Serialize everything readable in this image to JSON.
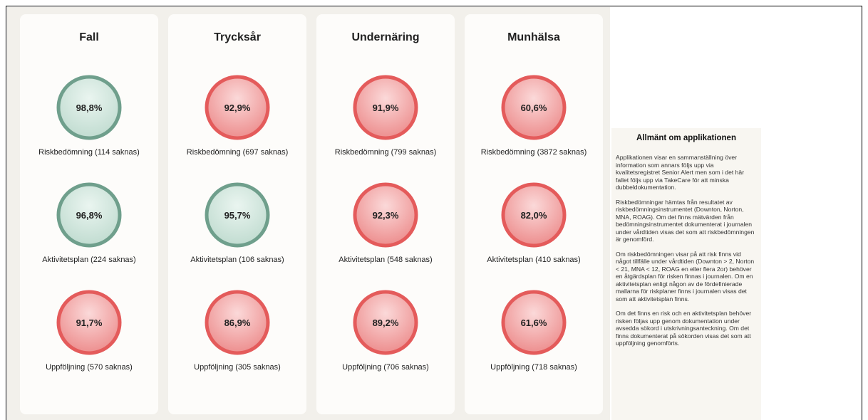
{
  "columns": [
    {
      "title": "Fall",
      "metrics": [
        {
          "value": "98,8%",
          "label": "Riskbedömning (114 saknas)",
          "color": "#6f9f8c"
        },
        {
          "value": "96,8%",
          "label": "Aktivitetsplan (224 saknas)",
          "color": "#6f9f8c"
        },
        {
          "value": "91,7%",
          "label": "Uppföljning (570 saknas)",
          "color": "#e45b5b"
        }
      ]
    },
    {
      "title": "Trycksår",
      "metrics": [
        {
          "value": "92,9%",
          "label": "Riskbedömning (697 saknas)",
          "color": "#e45b5b"
        },
        {
          "value": "95,7%",
          "label": "Aktivitetsplan (106 saknas)",
          "color": "#6f9f8c"
        },
        {
          "value": "86,9%",
          "label": "Uppföljning (305 saknas)",
          "color": "#e45b5b"
        }
      ]
    },
    {
      "title": "Undernäring",
      "metrics": [
        {
          "value": "91,9%",
          "label": "Riskbedömning (799 saknas)",
          "color": "#e45b5b"
        },
        {
          "value": "92,3%",
          "label": "Aktivitetsplan (548 saknas)",
          "color": "#e45b5b"
        },
        {
          "value": "89,2%",
          "label": "Uppföljning (706 saknas)",
          "color": "#e45b5b"
        }
      ]
    },
    {
      "title": "Munhälsa",
      "metrics": [
        {
          "value": "60,6%",
          "label": "Riskbedömning (3872 saknas)",
          "color": "#e45b5b"
        },
        {
          "value": "82,0%",
          "label": "Aktivitetsplan (410 saknas)",
          "color": "#e45b5b"
        },
        {
          "value": "61,6%",
          "label": "Uppföljning (718 saknas)",
          "color": "#e45b5b"
        }
      ]
    }
  ],
  "info": {
    "title": "Allmänt om applikationen",
    "paragraphs": [
      "Applikationen visar en sammanställning över information som annars följs upp via kvalitetsregistret Senior Alert men som i det här fallet följs upp via TakeCare för att minska dubbeldokumentation.",
      "Riskbedömningar hämtas från resultatet av riskbedömningsinstrumentet (Downton, Norton, MNA, ROAG). Om det finns mätvärden från bedömningsinstrumentet dokumenterat i journalen under vårdtiden visas det som att riskbedömningen är genomförd.",
      "Om riskbedömningen visar på att risk finns vid något tillfälle under vårdtiden (Downton > 2, Norton < 21, MNA < 12, ROAG en eller flera 2or) behöver en åtgärdsplan för risken finnas i journalen. Om en aktivitetsplan enligt någon av de fördefinierade mallarna för riskplaner finns i journalen visas det som att aktivitetsplan finns.",
      "Om det finns en risk och en aktivitetsplan behöver risken följas upp genom dokumentation under avsedda sökord i utskrivningsanteckning. Om det finns dokumenterat på sökorden visas det som att uppföljning genomförts."
    ]
  }
}
